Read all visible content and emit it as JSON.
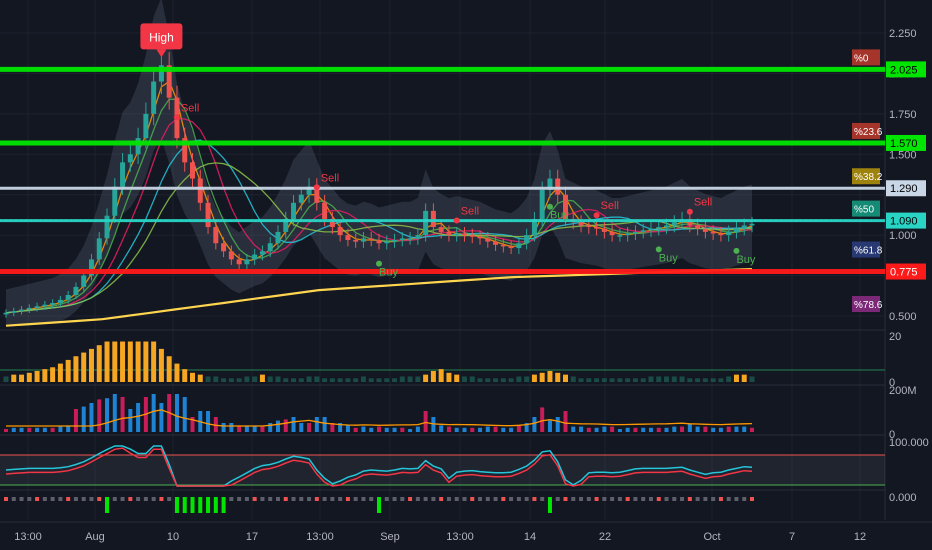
{
  "colors": {
    "background": "#131722",
    "grid": "#1e2230",
    "axis_text": "#b2b5be",
    "bull": "#26a69a",
    "bear": "#ef5350",
    "green_level": "#00e600",
    "red_level": "#ff1a1a",
    "white_level": "#c8d6e5",
    "teal_level": "#2ad4c4",
    "ma_long": "#ffd54f",
    "volume_bar": "#f5a623",
    "volume_bar_dim": "#1b4b46"
  },
  "chart_data": [
    {
      "type": "candlestick",
      "ylim": [
        0.4,
        2.35
      ],
      "y_ticks": [
        "2.250",
        "2.000",
        "1.750",
        "1.500",
        "1.000",
        "0.500"
      ],
      "x_tick_labels": [
        "13:00",
        "Aug",
        "10",
        "17",
        "13:00",
        "Sep",
        "13:00",
        "14",
        "22",
        "Oct",
        "7",
        "12"
      ],
      "levels": [
        {
          "value": 2.025,
          "label": "2.025",
          "color": "#00e600",
          "pct_label": "%0"
        },
        {
          "value": 1.57,
          "label": "1.570",
          "color": "#00e600",
          "pct_label": "%23.6"
        },
        {
          "value": 1.29,
          "label": "1.290",
          "color": "#c8d6e5",
          "pct_label": "%38.2"
        },
        {
          "value": 1.09,
          "label": "1.090",
          "color": "#2ad4c4",
          "pct_label": "%50"
        },
        {
          "value": 0.775,
          "label": "0.775",
          "color": "#ff1a1a",
          "pct_label": "%61.8"
        },
        {
          "value": 0.5,
          "label": "",
          "color": "#9c27b0",
          "pct_label": "%78.6"
        }
      ],
      "annotations": [
        {
          "text": "High",
          "kind": "callout"
        },
        {
          "text": "Sell",
          "kind": "signal"
        },
        {
          "text": "Sell",
          "kind": "signal"
        },
        {
          "text": "Sell",
          "kind": "signal"
        },
        {
          "text": "Sell",
          "kind": "signal"
        },
        {
          "text": "Sell",
          "kind": "signal"
        },
        {
          "text": "Buy",
          "kind": "signal"
        },
        {
          "text": "Buy",
          "kind": "signal"
        },
        {
          "text": "Buy",
          "kind": "signal"
        },
        {
          "text": "Buy",
          "kind": "signal"
        }
      ],
      "close_series": [
        0.52,
        0.53,
        0.54,
        0.55,
        0.56,
        0.57,
        0.58,
        0.6,
        0.63,
        0.68,
        0.75,
        0.85,
        0.98,
        1.12,
        1.3,
        1.45,
        1.5,
        1.6,
        1.75,
        1.95,
        2.05,
        1.85,
        1.6,
        1.45,
        1.35,
        1.2,
        1.05,
        0.95,
        0.9,
        0.85,
        0.82,
        0.85,
        0.88,
        0.9,
        0.95,
        1.02,
        1.1,
        1.2,
        1.25,
        1.3,
        1.2,
        1.1,
        1.05,
        1.0,
        0.97,
        0.96,
        0.98,
        0.97,
        0.95,
        0.96,
        0.97,
        0.98,
        0.98,
        1.0,
        1.15,
        1.05,
        1.02,
        1.0,
        1.01,
        1.0,
        0.99,
        0.98,
        0.96,
        0.94,
        0.93,
        0.92,
        0.95,
        1.0,
        1.1,
        1.28,
        1.35,
        1.25,
        1.1,
        1.08,
        1.06,
        1.05,
        1.04,
        1.02,
        1.0,
        1.0,
        1.01,
        1.02,
        1.03,
        1.04,
        1.05,
        1.06,
        1.08,
        1.1,
        1.06,
        1.04,
        1.02,
        1.01,
        1.0,
        1.02,
        1.04,
        1.06,
        1.07
      ],
      "ma_long_series": [
        0.44,
        0.45,
        0.46,
        0.47,
        0.48,
        0.5,
        0.52,
        0.54,
        0.56,
        0.58,
        0.6,
        0.62,
        0.64,
        0.66,
        0.67,
        0.68,
        0.69,
        0.7,
        0.71,
        0.72,
        0.73,
        0.74,
        0.745,
        0.75,
        0.755,
        0.76,
        0.765,
        0.77,
        0.775,
        0.78,
        0.785,
        0.79
      ]
    },
    {
      "type": "bar",
      "panel": "volume indicator",
      "ylim": [
        0,
        25
      ],
      "y_ticks": [
        "20",
        "0"
      ],
      "values": [
        3,
        4,
        4,
        5,
        6,
        7,
        8,
        10,
        12,
        14,
        16,
        18,
        20,
        22,
        22,
        22,
        22,
        22,
        22,
        22,
        18,
        14,
        10,
        7,
        5,
        4,
        3,
        3,
        2,
        2,
        2,
        3,
        3,
        4,
        3,
        3,
        2,
        2,
        2,
        3,
        3,
        2,
        2,
        2,
        2,
        2,
        3,
        2,
        2,
        2,
        2,
        3,
        3,
        3,
        4,
        6,
        7,
        5,
        4,
        3,
        3,
        2,
        2,
        2,
        2,
        2,
        3,
        3,
        4,
        5,
        6,
        5,
        4,
        3,
        2,
        2,
        2,
        2,
        2,
        2,
        2,
        2,
        2,
        3,
        3,
        3,
        3,
        3,
        2,
        2,
        2,
        2,
        2,
        3,
        4,
        4,
        3
      ]
    },
    {
      "type": "bar",
      "panel": "volume",
      "y_ticks": [
        "200M",
        "0"
      ]
    },
    {
      "type": "line",
      "panel": "oscillator",
      "y_ticks": [
        "100.000"
      ]
    },
    {
      "type": "bar",
      "panel": "histogram",
      "y_ticks": [
        "0.000"
      ]
    }
  ]
}
